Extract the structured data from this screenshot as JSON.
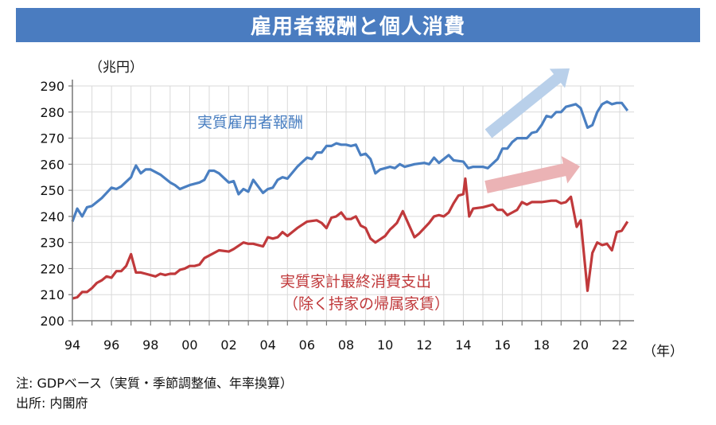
{
  "header": {
    "title": "雇用者報酬と個人消費"
  },
  "notes": [
    "注: GDPベース（実質・季節調整値、年率換算）",
    "出所: 内閣府"
  ],
  "chart_data": {
    "type": "line",
    "title": "雇用者報酬と個人消費",
    "ylabel": "（兆円）",
    "xlabel": "（年）",
    "ylim": [
      200,
      290
    ],
    "xlim": [
      1994,
      2022.9
    ],
    "yticks": [
      200,
      210,
      220,
      230,
      240,
      250,
      260,
      270,
      280,
      290
    ],
    "xtick_labels": [
      "94",
      "96",
      "98",
      "00",
      "02",
      "04",
      "06",
      "08",
      "10",
      "12",
      "14",
      "16",
      "18",
      "20",
      "22"
    ],
    "grid": true,
    "colors": {
      "compensation": "#4a7fc1",
      "consumption": "#c0393b",
      "title_bar": "#4a7cc0",
      "arrow_blue": "#b9d0ea",
      "arrow_red": "#ebb3b5"
    },
    "series": [
      {
        "name": "実質雇用者報酬",
        "key": "compensation",
        "x": [
          1994.0,
          1994.25,
          1994.5,
          1994.75,
          1995.0,
          1995.5,
          1996.0,
          1996.25,
          1996.5,
          1997.0,
          1997.1,
          1997.25,
          1997.5,
          1997.75,
          1998.0,
          1998.5,
          1999.0,
          1999.25,
          1999.5,
          2000.0,
          2000.5,
          2000.75,
          2001.0,
          2001.25,
          2001.5,
          2002.0,
          2002.25,
          2002.5,
          2002.75,
          2003.0,
          2003.25,
          2003.75,
          2004.0,
          2004.25,
          2004.5,
          2004.75,
          2005.0,
          2005.5,
          2006.0,
          2006.25,
          2006.5,
          2006.75,
          2007.0,
          2007.25,
          2007.5,
          2007.75,
          2008.0,
          2008.25,
          2008.5,
          2008.75,
          2009.0,
          2009.25,
          2009.5,
          2009.75,
          2010.0,
          2010.25,
          2010.5,
          2010.75,
          2011.0,
          2011.5,
          2012.0,
          2012.25,
          2012.5,
          2012.75,
          2013.0,
          2013.25,
          2013.5,
          2014.0,
          2014.25,
          2014.5,
          2015.0,
          2015.25,
          2015.75,
          2016.0,
          2016.25,
          2016.5,
          2016.75,
          2017.25,
          2017.5,
          2017.75,
          2018.0,
          2018.25,
          2018.5,
          2018.75,
          2019.0,
          2019.25,
          2019.5,
          2019.75,
          2020.0,
          2020.35,
          2020.6,
          2020.85,
          2021.1,
          2021.35,
          2021.6,
          2021.85,
          2022.1,
          2022.4
        ],
        "values": [
          238,
          243,
          240,
          243.5,
          244,
          247,
          251,
          250.5,
          251.5,
          255,
          257,
          259.5,
          256.5,
          258,
          258,
          256,
          253,
          252,
          250.5,
          252,
          253,
          254,
          257.5,
          257.5,
          256.5,
          253,
          253.5,
          248.5,
          250.5,
          249.5,
          254,
          249,
          250.5,
          251,
          254,
          255,
          254.5,
          259,
          262.5,
          262,
          264.5,
          264.5,
          267,
          267,
          268,
          267.5,
          267.5,
          267,
          267.5,
          263.5,
          264,
          262,
          256.5,
          258,
          258.5,
          259,
          258.5,
          260,
          259,
          260,
          260.5,
          260,
          262.5,
          260.5,
          262,
          263.5,
          261.5,
          261,
          258.5,
          259,
          259,
          258.5,
          262,
          266,
          266,
          268.5,
          270,
          270,
          272,
          272.5,
          275,
          278.5,
          278,
          280,
          280,
          282,
          282.5,
          283,
          281.5,
          274,
          275,
          280,
          283,
          284,
          283,
          283.5,
          283.5,
          280.5
        ]
      },
      {
        "name": "実質家計最終消費支出（除く持家の帰属家賃）",
        "key": "consumption",
        "x": [
          1994.0,
          1994.25,
          1994.5,
          1994.75,
          1995.0,
          1995.25,
          1995.5,
          1995.75,
          1996.0,
          1996.25,
          1996.5,
          1996.75,
          1997.0,
          1997.25,
          1997.5,
          1997.75,
          1998.25,
          1998.5,
          1998.75,
          1999.0,
          1999.25,
          1999.5,
          1999.75,
          2000.0,
          2000.25,
          2000.5,
          2000.75,
          2001.0,
          2001.5,
          2002.0,
          2002.25,
          2002.75,
          2003.0,
          2003.25,
          2003.75,
          2004.0,
          2004.25,
          2004.5,
          2004.75,
          2005.0,
          2005.5,
          2006.0,
          2006.5,
          2006.75,
          2007.0,
          2007.25,
          2007.5,
          2007.75,
          2008.0,
          2008.25,
          2008.5,
          2008.75,
          2009.0,
          2009.25,
          2009.5,
          2010.0,
          2010.25,
          2010.4,
          2010.6,
          2010.9,
          2011.2,
          2011.5,
          2011.75,
          2012.25,
          2012.5,
          2012.75,
          2013.0,
          2013.25,
          2013.5,
          2013.75,
          2014.0,
          2014.1,
          2014.3,
          2014.5,
          2015.0,
          2015.25,
          2015.5,
          2015.75,
          2016.0,
          2016.25,
          2016.5,
          2016.75,
          2017.0,
          2017.25,
          2017.5,
          2018.0,
          2018.5,
          2018.75,
          2019.0,
          2019.25,
          2019.5,
          2019.8,
          2020.0,
          2020.35,
          2020.6,
          2020.85,
          2021.1,
          2021.35,
          2021.6,
          2021.85,
          2022.1,
          2022.4
        ],
        "values": [
          208.5,
          209,
          211,
          211,
          212.5,
          214.5,
          215.5,
          217,
          216.5,
          219,
          219,
          221,
          225.5,
          218.5,
          218.5,
          218,
          217,
          218,
          217.5,
          218,
          218,
          219.5,
          220,
          221,
          221,
          221.5,
          224,
          225,
          227,
          226.5,
          227.5,
          230,
          229.5,
          229.5,
          228.5,
          232,
          231.5,
          232,
          234,
          232.5,
          235.5,
          238,
          238.5,
          237.5,
          235.5,
          239.5,
          240,
          241.5,
          239,
          239,
          240,
          236.5,
          235.5,
          231.5,
          230,
          232.5,
          235,
          236,
          237.5,
          242,
          237,
          232,
          233.5,
          237.5,
          240,
          240.5,
          240,
          241.5,
          245,
          248,
          248.5,
          254.5,
          240,
          243,
          243.5,
          244,
          244.5,
          242.5,
          242.5,
          240.5,
          241.5,
          242.5,
          245.5,
          244.5,
          245.5,
          245.5,
          246,
          246,
          245,
          245.5,
          247.5,
          236,
          238.5,
          211.5,
          226,
          230,
          229,
          229.5,
          227,
          234,
          234.5,
          238
        ]
      }
    ],
    "annotations": [
      "実質雇用者報酬",
      "実質家計最終消費支出",
      "（除く持家の帰属家賃）"
    ]
  }
}
